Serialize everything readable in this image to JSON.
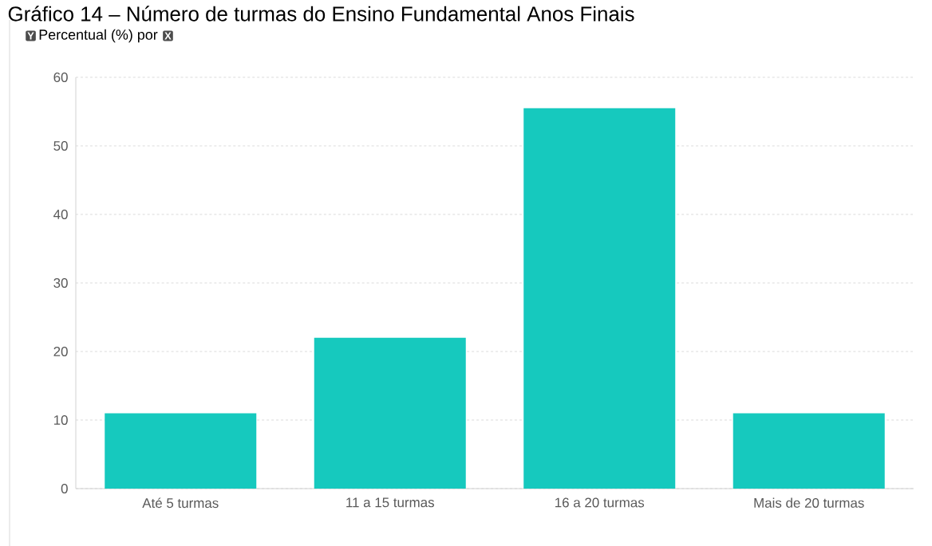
{
  "chart_data": {
    "type": "bar",
    "title": "Gráfico 14 – Número de turmas do Ensino Fundamental Anos Finais",
    "subtitle": "Percentual (%) por",
    "annotations": [
      "Y",
      "X"
    ],
    "categories": [
      "Até 5 turmas",
      "11 a 15 turmas",
      "16 a 20 turmas",
      "Mais de 20 turmas"
    ],
    "values": [
      11,
      22,
      55.5,
      11
    ],
    "color": "#16c9be",
    "ylim": [
      0,
      60
    ],
    "yticks": [
      0,
      10,
      20,
      30,
      40,
      50,
      60
    ],
    "grid": "y"
  }
}
